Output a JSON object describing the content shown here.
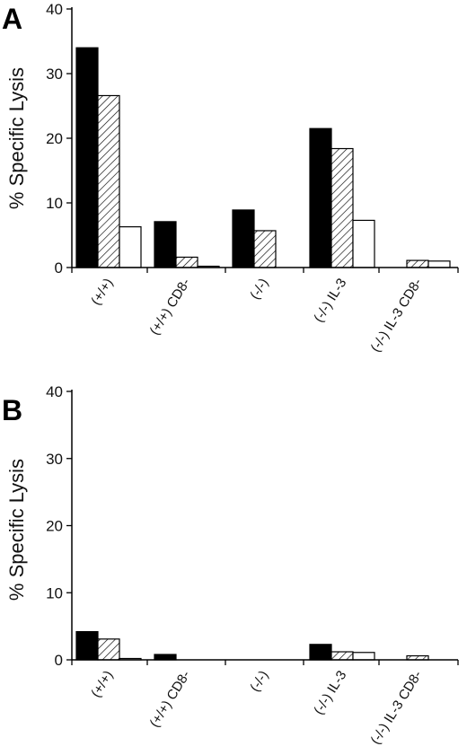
{
  "chart_data": [
    {
      "type": "bar",
      "panel_label": "A",
      "ylabel": "% Specific Lysis",
      "ylim": [
        0,
        40
      ],
      "yticks": [
        "0",
        "10",
        "20",
        "30",
        "40"
      ],
      "categories": [
        "(+/+)",
        "(+/+) CD8-",
        "(-/-)",
        "(-/-) IL-3",
        "(-/-) IL-3 CD8-"
      ],
      "series": [
        {
          "fill": "solid-black",
          "values": [
            34.0,
            7.1,
            8.9,
            21.5,
            0
          ]
        },
        {
          "fill": "hatched",
          "values": [
            26.6,
            1.6,
            5.7,
            18.4,
            1.1
          ]
        },
        {
          "fill": "white",
          "values": [
            6.3,
            0.2,
            0,
            7.3,
            1.0
          ]
        }
      ]
    },
    {
      "type": "bar",
      "panel_label": "B",
      "ylabel": "% Specific Lysis",
      "ylim": [
        0,
        40
      ],
      "yticks": [
        "0",
        "10",
        "20",
        "30",
        "40"
      ],
      "categories": [
        "(+/+)",
        "(+/+) CD8-",
        "(-/-)",
        "(-/-) IL-3",
        "(-/-) IL-3 CD8-"
      ],
      "series": [
        {
          "fill": "solid-black",
          "values": [
            4.2,
            0.8,
            0,
            2.3,
            0
          ]
        },
        {
          "fill": "hatched",
          "values": [
            3.1,
            0,
            0,
            1.2,
            0.6
          ]
        },
        {
          "fill": "white",
          "values": [
            0.2,
            0,
            0,
            1.1,
            0
          ]
        }
      ]
    }
  ],
  "colors": {
    "solid": "#000000",
    "hatch_line": "#000000",
    "white": "#ffffff",
    "axis": "#000000"
  }
}
